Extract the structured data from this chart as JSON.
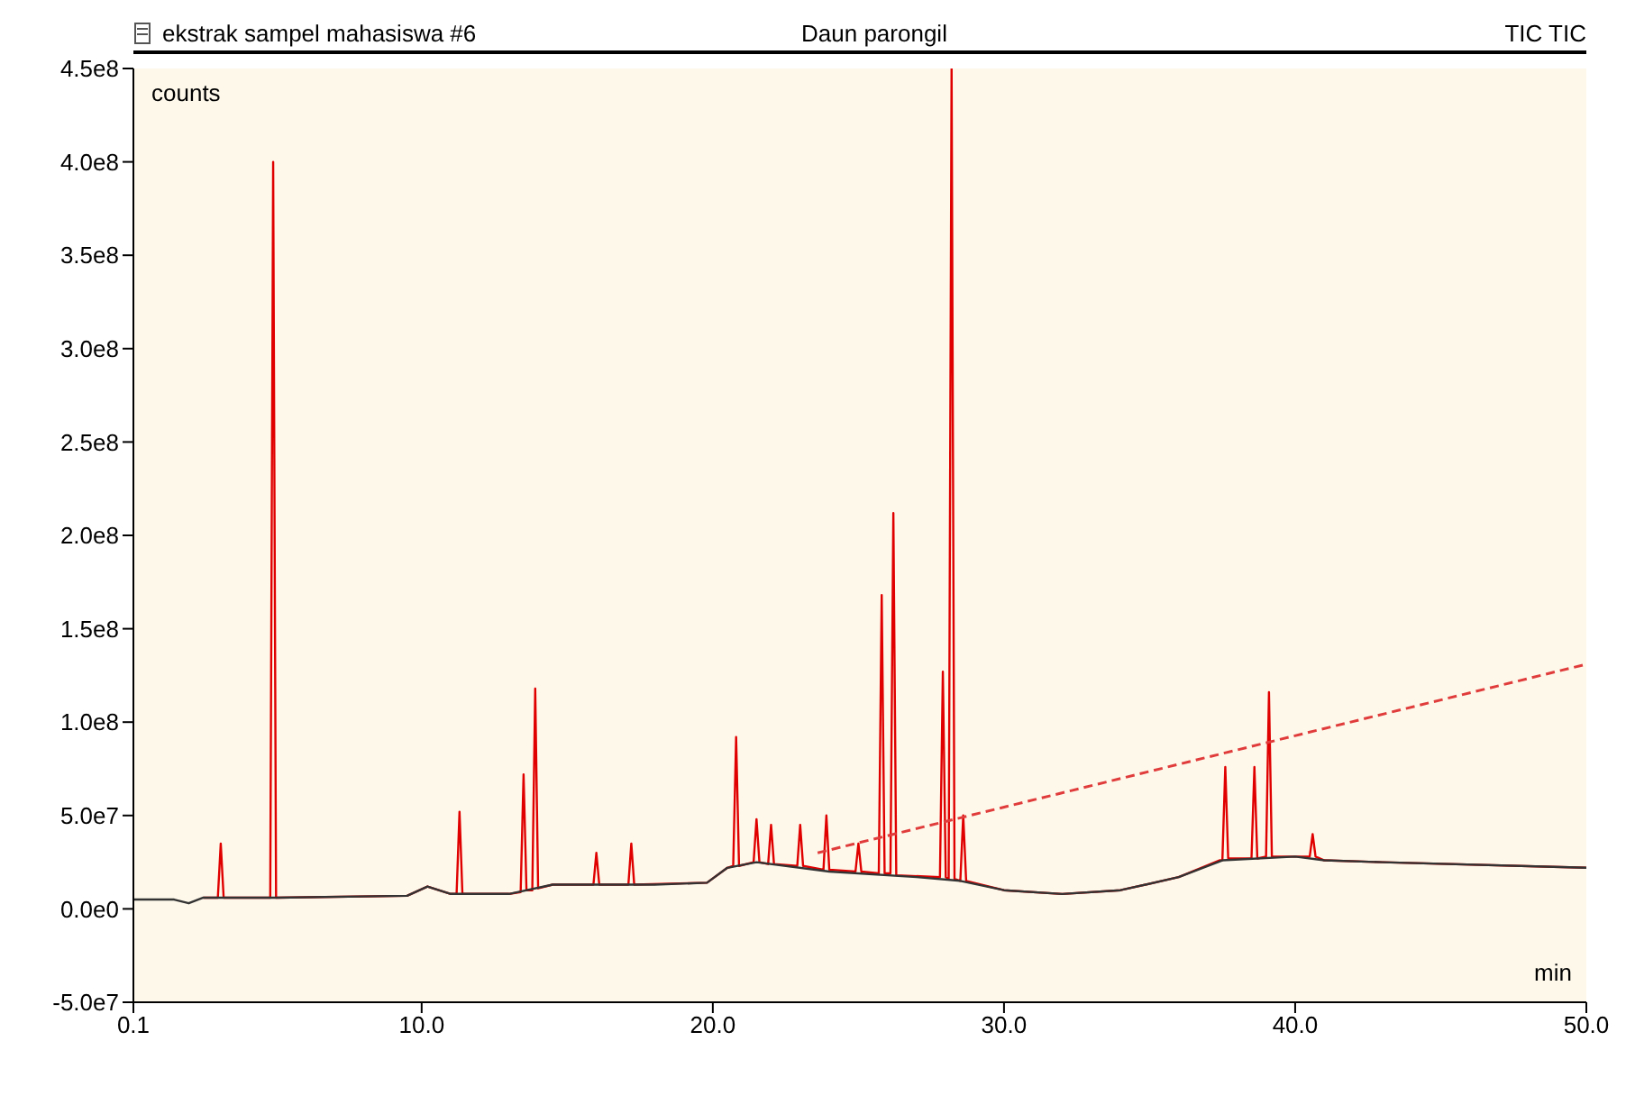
{
  "chart_data": {
    "type": "line",
    "title": "ekstrak sampel mahasiswa #6",
    "subtitle": "Daun parongil",
    "annotations": [
      "TIC TIC"
    ],
    "xlabel": "min",
    "ylabel": "counts",
    "xlim": [
      0.1,
      50
    ],
    "xticks": [
      0.1,
      {
        "value": 10,
        "label": "10.0"
      },
      {
        "value": 20,
        "label": "20.0"
      },
      {
        "value": 30,
        "label": "30.0"
      },
      {
        "value": 40,
        "label": "40.0"
      },
      {
        "value": 50,
        "label": "50.0"
      }
    ],
    "ylim": [
      -50000000,
      450000000
    ],
    "yticks": [
      {
        "value": -50000000,
        "label": "-5.0e7"
      },
      {
        "value": 0,
        "label": "0.0e0"
      },
      {
        "value": 50000000,
        "label": "5.0e7"
      },
      {
        "value": 100000000,
        "label": "1.0e8"
      },
      {
        "value": 150000000,
        "label": "1.5e8"
      },
      {
        "value": 200000000,
        "label": "2.0e8"
      },
      {
        "value": 250000000,
        "label": "2.5e8"
      },
      {
        "value": 300000000,
        "label": "3.0e8"
      },
      {
        "value": 350000000,
        "label": "3.5e8"
      },
      {
        "value": 400000000,
        "label": "4.0e8"
      },
      {
        "value": 450000000,
        "label": "4.5e8"
      }
    ],
    "series": [
      {
        "color": "#e00000",
        "x": [
          2.5,
          3.0,
          3.1,
          3.2,
          4.8,
          4.9,
          5.0,
          9.5,
          10.2,
          11.0,
          11.2,
          11.3,
          11.4,
          13.0,
          13.4,
          13.5,
          13.6,
          13.8,
          13.9,
          14.0,
          14.5,
          15.9,
          16.0,
          16.1,
          17.1,
          17.2,
          17.3,
          19.8,
          20.5,
          20.7,
          20.8,
          20.9,
          21.4,
          21.5,
          21.6,
          21.9,
          22.0,
          22.1,
          22.9,
          23.0,
          23.1,
          23.8,
          23.9,
          24.0,
          24.9,
          25.0,
          25.1,
          25.7,
          25.8,
          25.9,
          26.1,
          26.2,
          26.3,
          27.8,
          27.9,
          28.0,
          28.1,
          28.2,
          28.3,
          28.5,
          28.6,
          28.7,
          30.0,
          32.0,
          34.0,
          36.0,
          37.4,
          37.5,
          37.6,
          37.7,
          38.5,
          38.6,
          38.7,
          39.0,
          39.1,
          39.2,
          40.5,
          40.6,
          40.7,
          41.0,
          43.0,
          50.0
        ],
        "values": [
          6000000,
          6000000,
          35000000,
          6000000,
          6000000,
          400000000,
          6000000,
          7000000,
          12000000,
          8000000,
          8000000,
          52000000,
          8000000,
          8000000,
          9000000,
          72000000,
          10000000,
          10000000,
          118000000,
          11000000,
          13000000,
          13000000,
          30000000,
          13000000,
          13000000,
          35000000,
          13000000,
          14000000,
          22000000,
          23000000,
          92000000,
          23000000,
          25000000,
          48000000,
          25000000,
          24000000,
          45000000,
          24000000,
          23000000,
          45000000,
          23000000,
          21000000,
          50000000,
          21000000,
          20000000,
          35000000,
          20000000,
          19000000,
          168000000,
          19000000,
          19000000,
          212000000,
          18000000,
          17000000,
          127000000,
          17000000,
          16000000,
          450000000,
          16000000,
          15000000,
          50000000,
          15000000,
          10000000,
          8000000,
          10000000,
          17000000,
          26000000,
          26000000,
          76000000,
          27000000,
          27000000,
          76000000,
          27000000,
          28000000,
          116000000,
          28000000,
          28000000,
          40000000,
          28000000,
          26000000,
          25000000,
          22000000
        ]
      },
      {
        "color": "#333333",
        "x": [
          0.1,
          1.5,
          2.0,
          2.5,
          5.0,
          9.5,
          10.2,
          11.0,
          13.0,
          14.5,
          18.0,
          19.8,
          20.5,
          21.5,
          24.0,
          27.0,
          28.5,
          30.0,
          32.0,
          34.0,
          36.0,
          37.5,
          40.0,
          41.0,
          43.0,
          50.0
        ],
        "values": [
          5000000,
          5000000,
          3000000,
          6000000,
          6000000,
          7000000,
          12000000,
          8000000,
          8000000,
          13000000,
          13000000,
          14000000,
          22000000,
          25000000,
          20000000,
          17000000,
          15000000,
          10000000,
          8000000,
          10000000,
          17000000,
          26000000,
          28000000,
          26000000,
          25000000,
          22000000
        ]
      },
      {
        "color": "#e03c3c",
        "line_style": "dashed",
        "x": [
          23.6,
          50.0
        ],
        "values": [
          30000000,
          131000000
        ]
      }
    ]
  }
}
